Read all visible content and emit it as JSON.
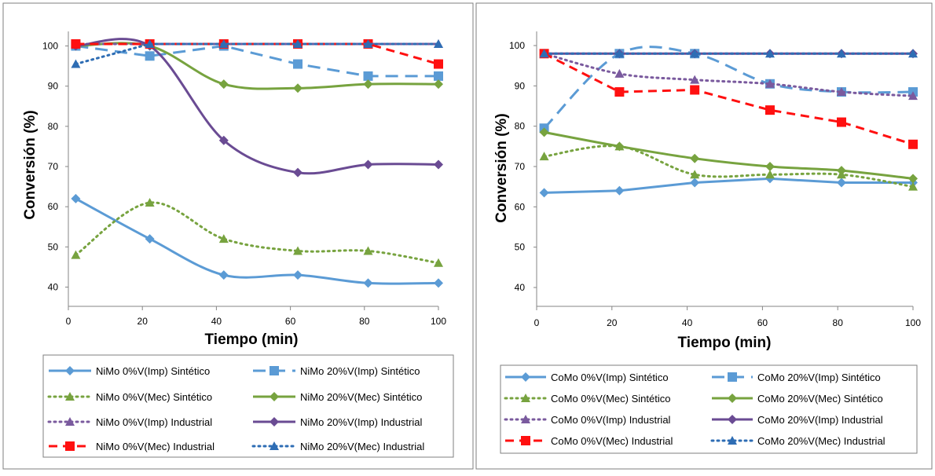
{
  "chart_data": [
    {
      "type": "line",
      "title": "",
      "xlabel": "Tiempo (min)",
      "ylabel": "Conversión (%)",
      "xlim": [
        0,
        100
      ],
      "ylim": [
        35,
        105
      ],
      "xticks": [
        "0",
        "20",
        "40",
        "60",
        "80",
        "100"
      ],
      "yticks": [
        "40",
        "50",
        "60",
        "70",
        "80",
        "90",
        "100"
      ],
      "legend": "bottom",
      "x": [
        2,
        22,
        42,
        62,
        81,
        100
      ],
      "series": [
        {
          "name": "NiMo 0%V(Imp)  Sintético",
          "color": "#5b9bd5",
          "dash": "solid",
          "marker": "diamond",
          "smooth": true,
          "values": [
            62,
            52,
            43,
            43,
            41,
            41
          ]
        },
        {
          "name": "NiMo 20%V(Imp)  Sintético",
          "color": "#5b9bd5",
          "dash": "longdash",
          "marker": "square",
          "smooth": false,
          "values": [
            100,
            97.5,
            100,
            95.5,
            92.5,
            92.5
          ]
        },
        {
          "name": "NiMo 0%V(Mec) Sintético",
          "color": "#77a33f",
          "dash": "dot",
          "marker": "triangle",
          "smooth": true,
          "values": [
            48,
            61,
            52,
            49,
            49,
            46
          ]
        },
        {
          "name": "NiMo 20%V(Mec) Sintético",
          "color": "#77a33f",
          "dash": "solid",
          "marker": "diamond",
          "smooth": true,
          "values": [
            100,
            100,
            90.5,
            89.5,
            90.5,
            90.5
          ]
        },
        {
          "name": "NiMo 0%V(Imp)  Industrial",
          "color": "#7a5a9e",
          "dash": "dot",
          "marker": "triangle",
          "smooth": false,
          "values": [
            100.5,
            100.5,
            100.5,
            100.5,
            100.5,
            100.5
          ]
        },
        {
          "name": "NiMo 20%V(Imp)  Industrial",
          "color": "#6a4b93",
          "dash": "solid",
          "marker": "diamond",
          "smooth": true,
          "values": [
            100,
            100,
            76.5,
            68.5,
            70.5,
            70.5
          ]
        },
        {
          "name": "NiMo 0%V(Mec) Industrial",
          "color": "#ff1010",
          "dash": "dashed",
          "marker": "square",
          "smooth": false,
          "values": [
            100.5,
            100.5,
            100.5,
            100.5,
            100.5,
            95.5
          ]
        },
        {
          "name": "NiMo 20%V(Mec) Industrial",
          "color": "#2e6db4",
          "dash": "dot",
          "marker": "triangle",
          "smooth": false,
          "values": [
            95.5,
            100.5,
            100.5,
            100.5,
            100.5,
            100.5
          ]
        }
      ]
    },
    {
      "type": "line",
      "title": "",
      "xlabel": "Tiempo (min)",
      "ylabel": "Conversión (%)",
      "xlim": [
        0,
        100
      ],
      "ylim": [
        35,
        105
      ],
      "xticks": [
        "0",
        "20",
        "40",
        "60",
        "80",
        "100"
      ],
      "yticks": [
        "40",
        "50",
        "60",
        "70",
        "80",
        "90",
        "100"
      ],
      "legend": "bottom",
      "x": [
        2,
        22,
        42,
        62,
        81,
        100
      ],
      "series": [
        {
          "name": "CoMo 0%V(Imp)  Sintético",
          "color": "#5b9bd5",
          "dash": "solid",
          "marker": "diamond",
          "smooth": false,
          "values": [
            63.5,
            64,
            66,
            67,
            66,
            66
          ]
        },
        {
          "name": "CoMo 20%V(Imp) Sintético",
          "color": "#5b9bd5",
          "dash": "longdash",
          "marker": "square",
          "smooth": true,
          "values": [
            79.5,
            98,
            98,
            90.5,
            88.5,
            88.5
          ]
        },
        {
          "name": "CoMo 0%V(Mec) Sintético",
          "color": "#77a33f",
          "dash": "dot",
          "marker": "triangle",
          "smooth": true,
          "values": [
            72.5,
            75,
            68,
            68,
            68,
            65
          ]
        },
        {
          "name": "CoMo 20%V(Mec) Sintético",
          "color": "#77a33f",
          "dash": "solid",
          "marker": "diamond",
          "smooth": true,
          "values": [
            78.5,
            75,
            72,
            70,
            69,
            67
          ]
        },
        {
          "name": "CoMo 0%V(Imp)  Industrial",
          "color": "#7a5a9e",
          "dash": "dot",
          "marker": "triangle",
          "smooth": true,
          "values": [
            98,
            93,
            91.5,
            90.5,
            88.5,
            87.5
          ]
        },
        {
          "name": "CoMo 20%V(Imp) Industrial",
          "color": "#6a4b93",
          "dash": "solid",
          "marker": "diamond",
          "smooth": false,
          "values": [
            98,
            98,
            98,
            98,
            98,
            98
          ]
        },
        {
          "name": "CoMo 0%V(Mec) Industrial",
          "color": "#ff1010",
          "dash": "dashed",
          "marker": "square",
          "smooth": false,
          "values": [
            98,
            88.5,
            89,
            84,
            81,
            75.5
          ]
        },
        {
          "name": "CoMo 20%V(Mec) Industrial",
          "color": "#2e6db4",
          "dash": "dot",
          "marker": "triangle",
          "smooth": false,
          "values": [
            98,
            98,
            98,
            98,
            98,
            98
          ]
        }
      ]
    }
  ]
}
